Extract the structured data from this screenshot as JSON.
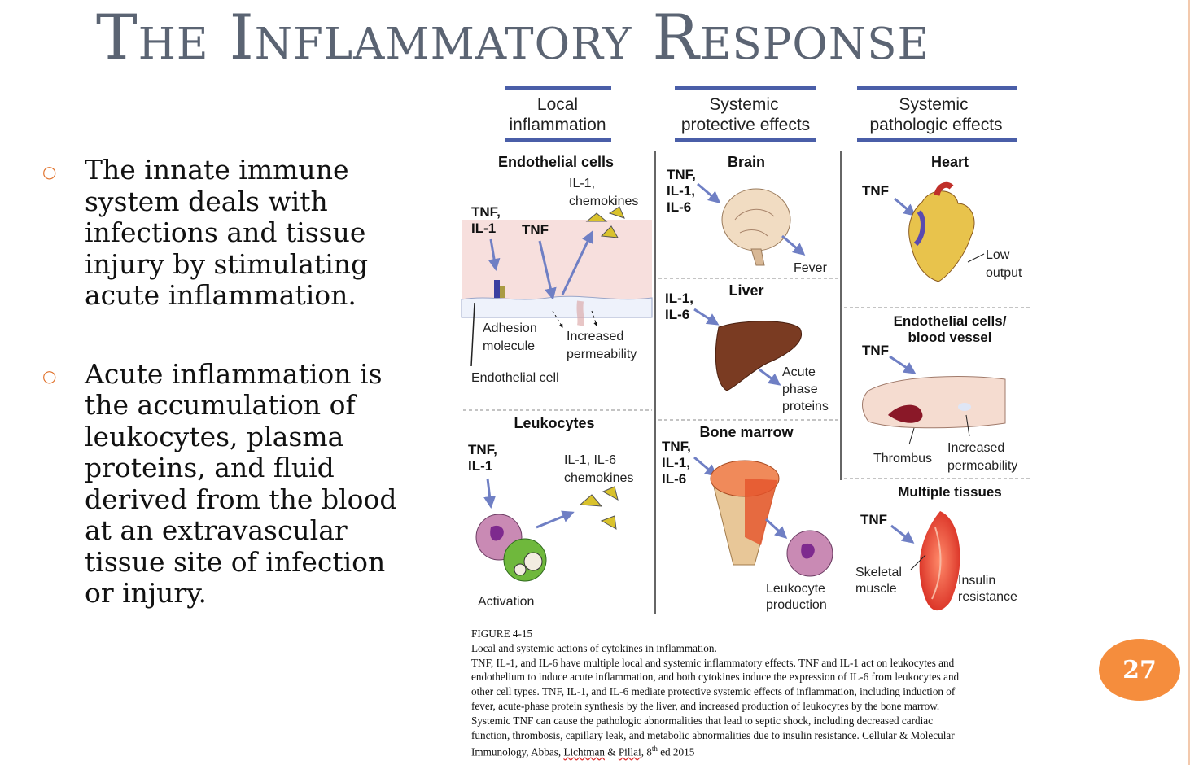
{
  "slide": {
    "title": "The Inflammatory Response",
    "page_number": "27"
  },
  "bullets": [
    {
      "text": "The innate immune system deals with infections and tissue injury by stimulating acute inflammation."
    },
    {
      "text": "Acute inflammation is the accumulation of leukocytes, plasma proteins, and fluid derived from the blood at an extravascular tissue site of infection or injury."
    }
  ],
  "figure": {
    "columns": {
      "col1": [
        "Local",
        "inflammation"
      ],
      "col2": [
        "Systemic",
        "protective effects"
      ],
      "col3": [
        "Systemic",
        "pathologic effects"
      ]
    },
    "panels": {
      "endothelial": {
        "title": "Endothelial cells",
        "stim1": [
          "TNF,",
          "IL-1"
        ],
        "stim2": "TNF",
        "prod": [
          "IL-1,",
          "chemokines"
        ],
        "adhesion": [
          "Adhesion",
          "molecule"
        ],
        "perm": [
          "Increased",
          "permeability"
        ],
        "cell": "Endothelial cell"
      },
      "leukocytes": {
        "title": "Leukocytes",
        "stim": [
          "TNF,",
          "IL-1"
        ],
        "prod": [
          "IL-1, IL-6",
          "chemokines"
        ],
        "activation": "Activation"
      },
      "brain": {
        "title": "Brain",
        "stim": [
          "TNF,",
          "IL-1,",
          "IL-6"
        ],
        "effect": "Fever"
      },
      "liver": {
        "title": "Liver",
        "stim": [
          "IL-1,",
          "IL-6"
        ],
        "effect": [
          "Acute",
          "phase",
          "proteins"
        ]
      },
      "marrow": {
        "title": "Bone marrow",
        "stim": [
          "TNF,",
          "IL-1,",
          "IL-6"
        ],
        "effect": [
          "Leukocyte",
          "production"
        ]
      },
      "heart": {
        "title": "Heart",
        "stim": "TNF",
        "effect": [
          "Low",
          "output"
        ]
      },
      "vessel": {
        "title": [
          "Endothelial cells/",
          "blood vessel"
        ],
        "stim": "TNF",
        "thrombus": "Thrombus",
        "perm": [
          "Increased",
          "permeability"
        ]
      },
      "tissues": {
        "title": "Multiple tissues",
        "stim": "TNF",
        "muscle": [
          "Skeletal",
          "muscle"
        ],
        "effect": [
          "Insulin",
          "resistance"
        ]
      }
    }
  },
  "caption": {
    "lines": [
      "FIGURE 4-15",
      "Local and systemic actions of cytokines in inflammation.",
      "TNF, IL-1, and IL-6 have multiple local and systemic inflammatory effects. TNF and IL-1 act on leukocytes and",
      "endothelium to induce acute inflammation, and both cytokines induce the expression of IL-6 from leukocytes and",
      "other cell types. TNF, IL-1, and IL-6 mediate protective systemic effects of inflammation, including induction of",
      "fever, acute-phase protein synthesis by the liver, and increased production of leukocytes by the bone marrow.",
      "Systemic TNF can cause the pathologic abnormalities that lead to septic shock, including decreased cardiac",
      "function, thrombosis, capillary leak, and metabolic abnormalities due to insulin resistance. Cellular & Molecular"
    ],
    "last_pre": "Immunology, Abbas, ",
    "last_a1": "Lichtman",
    "last_mid": " & ",
    "last_a2": "Pillai",
    "last_post": ", 8",
    "last_sup": "th",
    "last_end": " ed 2015"
  },
  "colors": {
    "title": "#5b6473",
    "bullet_marker": "#e0712a",
    "badge": "#f58d3d",
    "arrow": "#6f7fc4"
  }
}
